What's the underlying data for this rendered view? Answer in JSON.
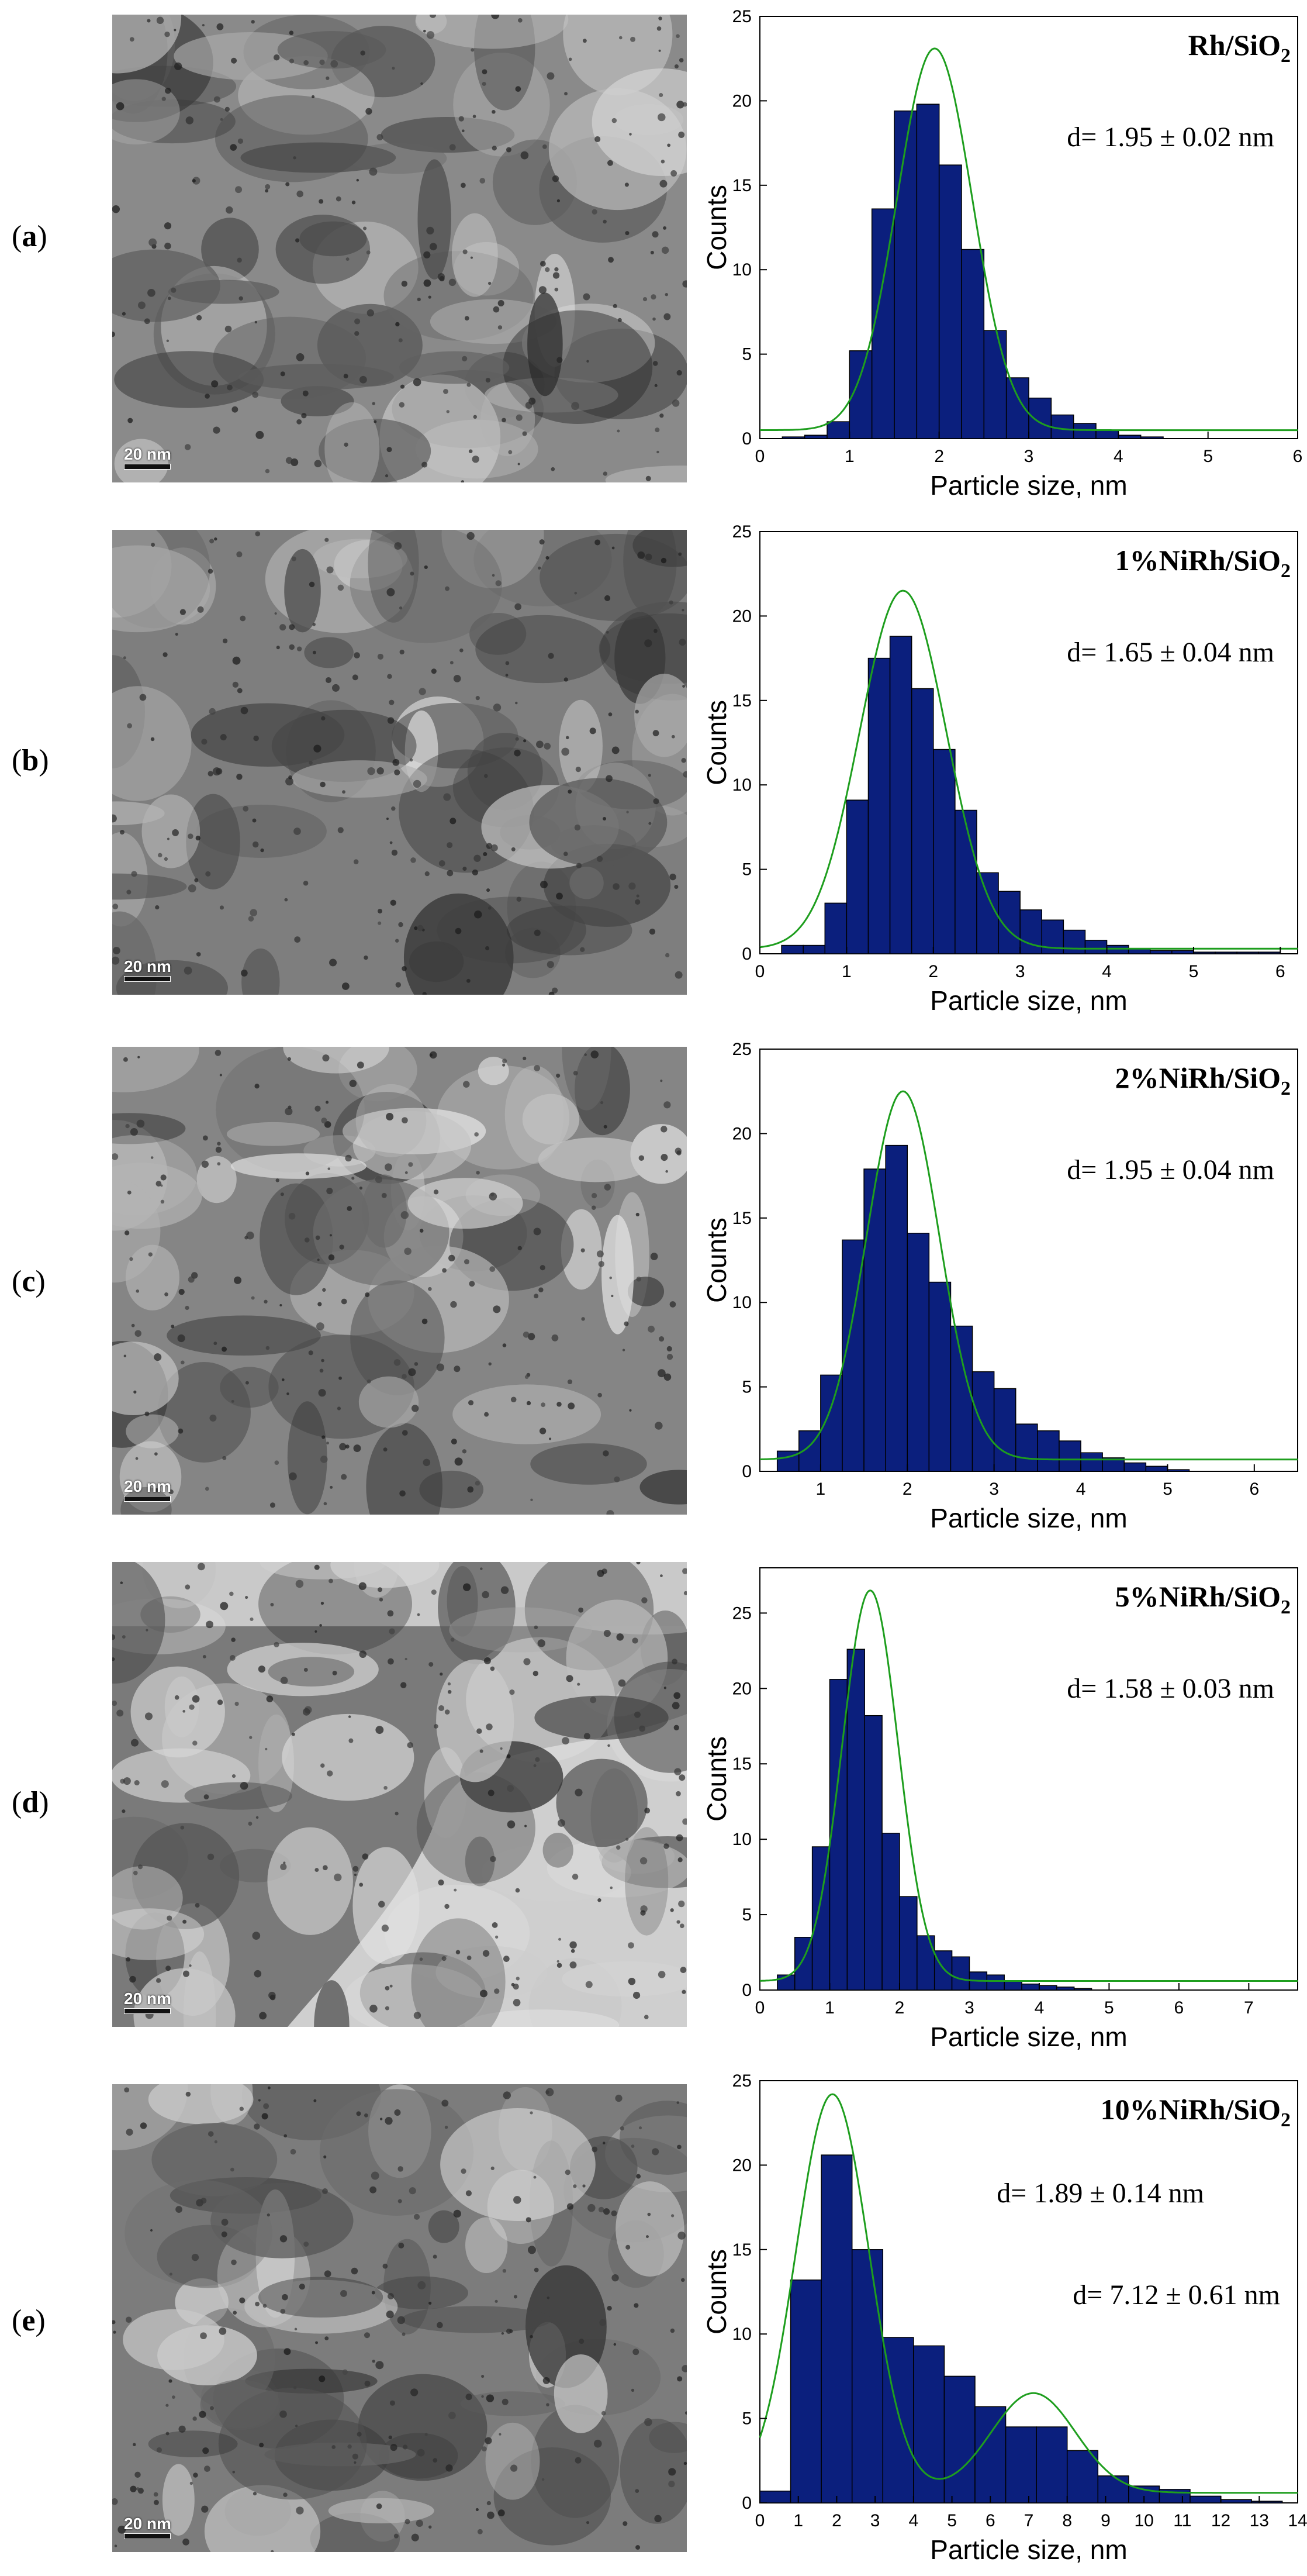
{
  "panels": [
    {
      "label": "a",
      "scale_text": "20 nm"
    },
    {
      "label": "b",
      "scale_text": "20 nm"
    },
    {
      "label": "c",
      "scale_text": "20 nm"
    },
    {
      "label": "d",
      "scale_text": "20 nm"
    },
    {
      "label": "e",
      "scale_text": "20 nm"
    }
  ],
  "colors": {
    "bar_fill": "#0b1f7d",
    "bar_stroke": "#000000",
    "fit_line": "#1e9e1e"
  },
  "chart_data": [
    {
      "type": "bar",
      "title": "Rh/SiO",
      "title_sub": "2",
      "annotations": [
        "d= 1.95 ± 0.02 nm"
      ],
      "xlabel": "Particle size, nm",
      "ylabel": "Counts",
      "xlim": [
        0,
        6
      ],
      "ylim": [
        0,
        25
      ],
      "xticks": [
        0,
        1,
        2,
        3,
        4,
        5,
        6
      ],
      "yticks": [
        0,
        5,
        10,
        15,
        20,
        25
      ],
      "bin_width": 0.25,
      "bin_centers": [
        0.375,
        0.625,
        0.875,
        1.125,
        1.375,
        1.625,
        1.875,
        2.125,
        2.375,
        2.625,
        2.875,
        3.125,
        3.375,
        3.625,
        3.875,
        4.125,
        4.375
      ],
      "values": [
        0.1,
        0.2,
        1.0,
        5.2,
        13.6,
        19.4,
        19.8,
        16.2,
        11.2,
        6.4,
        3.6,
        2.4,
        1.4,
        0.9,
        0.5,
        0.2,
        0.1
      ],
      "fit_peaks": [
        {
          "center": 1.95,
          "sigma": 0.42,
          "amp": 22.6
        }
      ],
      "fit_baseline": 0.5
    },
    {
      "type": "bar",
      "title": "1%NiRh/SiO",
      "title_sub": "2",
      "annotations": [
        "d= 1.65 ± 0.04 nm"
      ],
      "xlabel": "Particle size, nm",
      "ylabel": "Counts",
      "xlim": [
        0,
        6.2
      ],
      "ylim": [
        0,
        25
      ],
      "xticks": [
        0,
        1,
        2,
        3,
        4,
        5,
        6
      ],
      "yticks": [
        0,
        5,
        10,
        15,
        20,
        25
      ],
      "bin_width": 0.25,
      "bin_centers": [
        0.375,
        0.625,
        0.875,
        1.125,
        1.375,
        1.625,
        1.875,
        2.125,
        2.375,
        2.625,
        2.875,
        3.125,
        3.375,
        3.625,
        3.875,
        4.125,
        4.375,
        4.625,
        4.875,
        5.125,
        5.375,
        5.625,
        5.875
      ],
      "values": [
        0.5,
        0.5,
        3.0,
        9.1,
        17.5,
        18.8,
        15.7,
        12.1,
        8.5,
        4.8,
        3.7,
        2.6,
        2.0,
        1.4,
        0.8,
        0.5,
        0.3,
        0.2,
        0.2,
        0.1,
        0.1,
        0.1,
        0.1
      ],
      "fit_peaks": [
        {
          "center": 1.65,
          "sigma": 0.5,
          "amp": 21.2
        }
      ],
      "fit_baseline": 0.3
    },
    {
      "type": "bar",
      "title": "2%NiRh/SiO",
      "title_sub": "2",
      "annotations": [
        "d= 1.95 ± 0.04 nm"
      ],
      "xlabel": "Particle size, nm",
      "ylabel": "Counts",
      "xlim": [
        0.3,
        6.5
      ],
      "ylim": [
        0,
        25
      ],
      "xticks": [
        1,
        2,
        3,
        4,
        5,
        6
      ],
      "yticks": [
        0,
        5,
        10,
        15,
        20,
        25
      ],
      "bin_width": 0.25,
      "bin_centers": [
        0.625,
        0.875,
        1.125,
        1.375,
        1.625,
        1.875,
        2.125,
        2.375,
        2.625,
        2.875,
        3.125,
        3.375,
        3.625,
        3.875,
        4.125,
        4.375,
        4.625,
        4.875,
        5.125
      ],
      "values": [
        1.2,
        2.4,
        5.7,
        13.7,
        17.9,
        19.3,
        14.1,
        11.2,
        8.6,
        5.9,
        4.9,
        2.8,
        2.4,
        1.8,
        1.1,
        0.8,
        0.5,
        0.3,
        0.1
      ],
      "fit_peaks": [
        {
          "center": 1.95,
          "sigma": 0.42,
          "amp": 21.8
        }
      ],
      "fit_baseline": 0.7
    },
    {
      "type": "bar",
      "title": "5%NiRh/SiO",
      "title_sub": "2",
      "annotations": [
        "d= 1.58 ± 0.03 nm"
      ],
      "xlabel": "Particle size, nm",
      "ylabel": "Counts",
      "xlim": [
        0,
        7.7
      ],
      "ylim": [
        0,
        28
      ],
      "xticks": [
        0,
        1,
        2,
        3,
        4,
        5,
        6,
        7
      ],
      "yticks": [
        0,
        5,
        10,
        15,
        20,
        25
      ],
      "bin_width": 0.25,
      "bin_centers": [
        0.375,
        0.625,
        0.875,
        1.125,
        1.375,
        1.625,
        1.875,
        2.125,
        2.375,
        2.625,
        2.875,
        3.125,
        3.375,
        3.625,
        3.875,
        4.125,
        4.375,
        4.625
      ],
      "values": [
        1.0,
        3.5,
        9.5,
        20.6,
        22.6,
        18.2,
        10.4,
        6.2,
        3.6,
        2.6,
        2.2,
        1.2,
        1.0,
        0.6,
        0.4,
        0.3,
        0.2,
        0.1
      ],
      "fit_peaks": [
        {
          "center": 1.58,
          "sigma": 0.4,
          "amp": 25.9
        }
      ],
      "fit_baseline": 0.6
    },
    {
      "type": "bar",
      "title": "10%NiRh/SiO",
      "title_sub": "2",
      "annotations": [
        "d= 1.89 ± 0.14 nm",
        "d= 7.12 ± 0.61 nm"
      ],
      "xlabel": "Particle size, nm",
      "ylabel": "Counts",
      "xlim": [
        0,
        14
      ],
      "ylim": [
        0,
        25
      ],
      "xticks": [
        0,
        1,
        2,
        3,
        4,
        5,
        6,
        7,
        8,
        9,
        10,
        11,
        12,
        13,
        14
      ],
      "yticks": [
        0,
        5,
        10,
        15,
        20,
        25
      ],
      "bin_width": 0.8,
      "bin_centers": [
        0.4,
        1.2,
        2.0,
        2.8,
        3.6,
        4.4,
        5.2,
        6.0,
        6.8,
        7.6,
        8.4,
        9.2,
        10.0,
        10.8,
        11.6,
        12.4,
        13.2
      ],
      "values": [
        0.7,
        13.2,
        20.6,
        15.0,
        9.8,
        9.3,
        7.5,
        5.7,
        4.5,
        4.5,
        3.1,
        1.6,
        1.0,
        0.8,
        0.4,
        0.2,
        0.1
      ],
      "fit_peaks": [
        {
          "center": 1.89,
          "sigma": 0.95,
          "amp": 23.6
        },
        {
          "center": 7.12,
          "sigma": 1.1,
          "amp": 5.9
        }
      ],
      "fit_baseline": 0.6
    }
  ]
}
